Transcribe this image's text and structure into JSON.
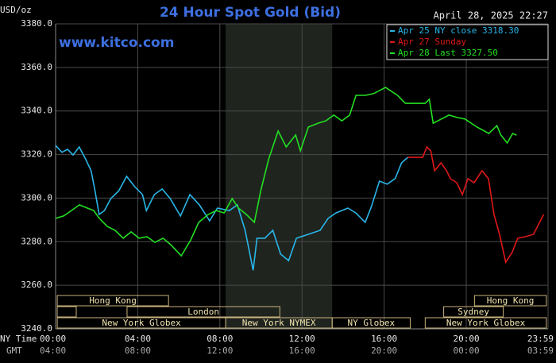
{
  "chart_data": {
    "type": "line",
    "title": "24 Hour Spot Gold (Bid)",
    "subtitle": "www.kitco.com",
    "timestamp": "April 28, 2025 22:27",
    "y_label": "USD/oz",
    "x_row_labels": [
      "NY Time",
      "GMT"
    ],
    "xlim": [
      0,
      23.983
    ],
    "ylim": [
      3240,
      3380
    ],
    "xticks": [
      {
        "value": 0,
        "label": "00:00"
      },
      {
        "value": 4,
        "label": "04:00"
      },
      {
        "value": 8,
        "label": "08:00"
      },
      {
        "value": 12,
        "label": "12:00"
      },
      {
        "value": 16,
        "label": "16:00"
      },
      {
        "value": 20,
        "label": "20:00"
      },
      {
        "value": 23.983,
        "label": "23:59"
      }
    ],
    "gmt_tick_labels": [
      "04:00",
      "08:00",
      "12:00",
      "16:00",
      "20:00",
      "00:00",
      "03:59"
    ],
    "yticks": [
      {
        "value": 3240,
        "label": "3240.0"
      },
      {
        "value": 3260,
        "label": "3260.0"
      },
      {
        "value": 3280,
        "label": "3280.0"
      },
      {
        "value": 3300,
        "label": "3300.0"
      },
      {
        "value": 3320,
        "label": "3320.0"
      },
      {
        "value": 3340,
        "label": "3340.0"
      },
      {
        "value": 3360,
        "label": "3360.0"
      },
      {
        "value": 3380,
        "label": "3380.0"
      }
    ],
    "grid": true,
    "shaded_range": [
      8.28,
      13.47
    ],
    "sessions": [
      {
        "label": "Hong Kong",
        "row": 0,
        "start": 0.08,
        "end": 5.5
      },
      {
        "label": "Hong Kong",
        "row": 0,
        "start": 20.4,
        "end": 23.9
      },
      {
        "label": "London",
        "row": 1,
        "start": 3.48,
        "end": 10.92
      },
      {
        "label": "Sydney",
        "row": 1,
        "start": 18.9,
        "end": 21.8
      },
      {
        "label": "New York Globex",
        "row": 2,
        "start": 0.08,
        "end": 8.28
      },
      {
        "label": "New York NYMEX",
        "row": 2,
        "start": 8.28,
        "end": 13.47
      },
      {
        "label": "NY Globex",
        "row": 2,
        "start": 13.47,
        "end": 17.27
      },
      {
        "label": "New York Globex",
        "row": 2,
        "start": 18.0,
        "end": 23.9
      }
    ],
    "legend": "top-right",
    "series": [
      {
        "name": "Apr 25 NY close 3318.30",
        "color": "#29b6e8",
        "x": [
          0,
          0.31,
          0.58,
          0.85,
          1.15,
          1.46,
          1.73,
          1.92,
          2.12,
          2.38,
          2.69,
          3.08,
          3.46,
          3.85,
          4.23,
          4.42,
          4.81,
          5.19,
          5.58,
          6.08,
          6.54,
          7.0,
          7.5,
          7.88,
          8.46,
          8.85,
          9.23,
          9.62,
          9.81,
          10.19,
          10.58,
          10.96,
          11.35,
          11.73,
          12.31,
          12.88,
          13.27,
          13.65,
          14.23,
          14.62,
          15.08,
          15.38,
          15.77,
          16.15,
          16.54,
          16.85,
          17.15
        ],
        "values": [
          3324.2,
          3321,
          3322.4,
          3319.8,
          3323.5,
          3318,
          3312.6,
          3303.4,
          3292.5,
          3294.3,
          3299.8,
          3303.4,
          3310,
          3305.3,
          3301.6,
          3294.3,
          3301.6,
          3304.2,
          3299.8,
          3291.8,
          3301.6,
          3296.9,
          3289.6,
          3295.4,
          3294.3,
          3296.9,
          3285.2,
          3266.9,
          3281.6,
          3281.6,
          3285.2,
          3274.3,
          3271.3,
          3281.6,
          3283.4,
          3285.2,
          3290.7,
          3293.2,
          3295.4,
          3293.2,
          3288.9,
          3296.1,
          3307.8,
          3306.4,
          3309,
          3316.2,
          3318.7
        ]
      },
      {
        "name": "Apr 27 Sunday",
        "color": "#e01818",
        "x": [
          17.15,
          17.88,
          18.08,
          18.27,
          18.46,
          18.77,
          19.04,
          19.23,
          19.54,
          19.81,
          20.08,
          20.38,
          20.77,
          21.08,
          21.35,
          21.62,
          21.92,
          22.23,
          22.5,
          22.88,
          23.27,
          23.77
        ],
        "values": [
          3318.7,
          3318.7,
          3323.5,
          3321.7,
          3312.6,
          3316.2,
          3312.6,
          3308.9,
          3307.1,
          3301.6,
          3308.9,
          3307.1,
          3312.6,
          3308.9,
          3292.5,
          3283.4,
          3270.6,
          3275,
          3281.6,
          3282.3,
          3283.4,
          3292.5
        ]
      },
      {
        "name": "Apr 28 Last 3327.50",
        "color": "#22e022",
        "x": [
          0,
          0.39,
          0.77,
          1.16,
          1.55,
          1.86,
          2.13,
          2.52,
          2.9,
          3.29,
          3.68,
          4.06,
          4.45,
          4.84,
          5.23,
          5.61,
          6.12,
          6.58,
          6.97,
          7.43,
          7.82,
          8.21,
          8.6,
          8.91,
          9.29,
          9.68,
          9.99,
          10.38,
          10.84,
          11.23,
          11.69,
          11.92,
          12.31,
          12.78,
          13.16,
          13.55,
          13.94,
          14.32,
          14.63,
          15.1,
          15.49,
          16.07,
          16.65,
          17.03,
          18.0,
          18.2,
          18.39,
          18.78,
          19.16,
          19.55,
          19.94,
          20.52,
          21.1,
          21.49,
          21.68,
          21.99,
          22.26,
          22.45
        ],
        "values": [
          3290.7,
          3291.8,
          3294.3,
          3296.9,
          3295.4,
          3294.3,
          3290.7,
          3287,
          3285.2,
          3281.6,
          3284.5,
          3281.6,
          3282.3,
          3279.7,
          3281.6,
          3278.6,
          3273.5,
          3280.8,
          3288.9,
          3292.5,
          3294.3,
          3293.2,
          3299.8,
          3295.4,
          3292.5,
          3288.9,
          3303.4,
          3318,
          3330.8,
          3323.5,
          3329,
          3321.7,
          3332.6,
          3334.4,
          3335.5,
          3338.1,
          3335.5,
          3338.1,
          3347.2,
          3347.2,
          3348,
          3350.8,
          3347.2,
          3343.5,
          3343.5,
          3345.4,
          3334.4,
          3336.3,
          3338.1,
          3337,
          3336.3,
          3332.6,
          3329.7,
          3333.3,
          3329,
          3325.3,
          3329.7,
          3328.9
        ]
      }
    ]
  }
}
